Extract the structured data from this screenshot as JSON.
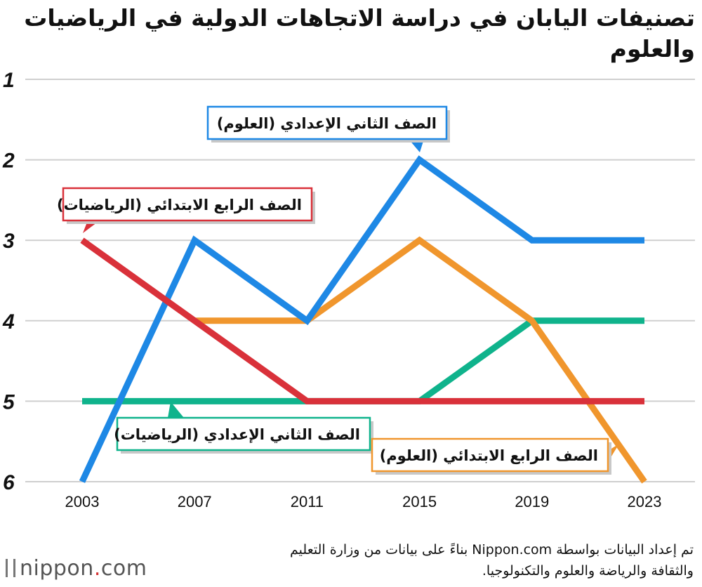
{
  "chart_data": {
    "type": "line",
    "title": "تصنيفات اليابان في دراسة الاتجاهات الدولية في الرياضيات والعلوم",
    "x": [
      "2003",
      "2007",
      "2011",
      "2015",
      "2019",
      "2023"
    ],
    "y_ticks": [
      "1",
      "2",
      "3",
      "4",
      "5",
      "6"
    ],
    "ylim": [
      1,
      6
    ],
    "y_inverted": true,
    "grid": true,
    "series": [
      {
        "name": "الصف الثاني الإعدادي (العلوم)",
        "color": "#1e88e5",
        "values": [
          6,
          3,
          4,
          2,
          3,
          3
        ]
      },
      {
        "name": "الصف الرابع الابتدائي (العلوم)",
        "color": "#f0962d",
        "values": [
          null,
          4,
          4,
          3,
          4,
          6
        ]
      },
      {
        "name": "الصف الثاني الإعدادي (الرياضيات)",
        "color": "#0fb38c",
        "values": [
          5,
          5,
          5,
          5,
          4,
          4
        ]
      },
      {
        "name": "الصف الرابع الابتدائي (الرياضيات)",
        "color": "#d9313a",
        "values": [
          3,
          4,
          5,
          5,
          5,
          5
        ]
      }
    ]
  },
  "footer": {
    "source": "تم إعداد البيانات بواسطة Nippon.com بناءً على بيانات من وزارة التعليم والثقافة والرياضة والعلوم والتكنولوجيا.",
    "logo_main": "nippon",
    "logo_dot": ".",
    "logo_suffix": "com"
  }
}
